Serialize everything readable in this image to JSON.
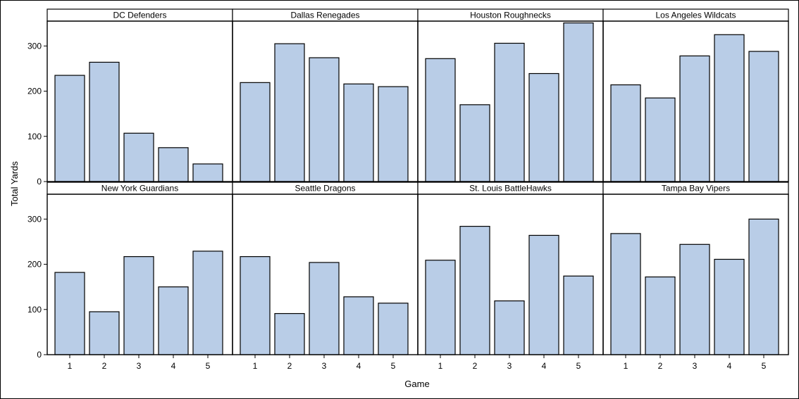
{
  "chart_data": {
    "type": "bar",
    "layout": "panel-grid",
    "xlabel": "Game",
    "ylabel": "Total Yards",
    "ylim": [
      0,
      355
    ],
    "yticks": [
      0,
      100,
      200,
      300
    ],
    "categories": [
      "1",
      "2",
      "3",
      "4",
      "5"
    ],
    "bar_color": "#b9cde7",
    "grid": false,
    "panels": [
      {
        "name": "DC Defenders",
        "values": [
          235,
          264,
          107,
          75,
          39
        ]
      },
      {
        "name": "Dallas Renegades",
        "values": [
          219,
          305,
          274,
          216,
          210
        ]
      },
      {
        "name": "Houston Roughnecks",
        "values": [
          272,
          170,
          306,
          239,
          351
        ]
      },
      {
        "name": "Los Angeles Wildcats",
        "values": [
          214,
          185,
          278,
          325,
          288
        ]
      },
      {
        "name": "New York Guardians",
        "values": [
          182,
          95,
          217,
          150,
          229
        ]
      },
      {
        "name": "Seattle Dragons",
        "values": [
          217,
          91,
          204,
          128,
          114
        ]
      },
      {
        "name": "St. Louis BattleHawks",
        "values": [
          209,
          284,
          119,
          264,
          174
        ]
      },
      {
        "name": "Tampa Bay Vipers",
        "values": [
          268,
          172,
          244,
          211,
          300
        ]
      }
    ]
  }
}
